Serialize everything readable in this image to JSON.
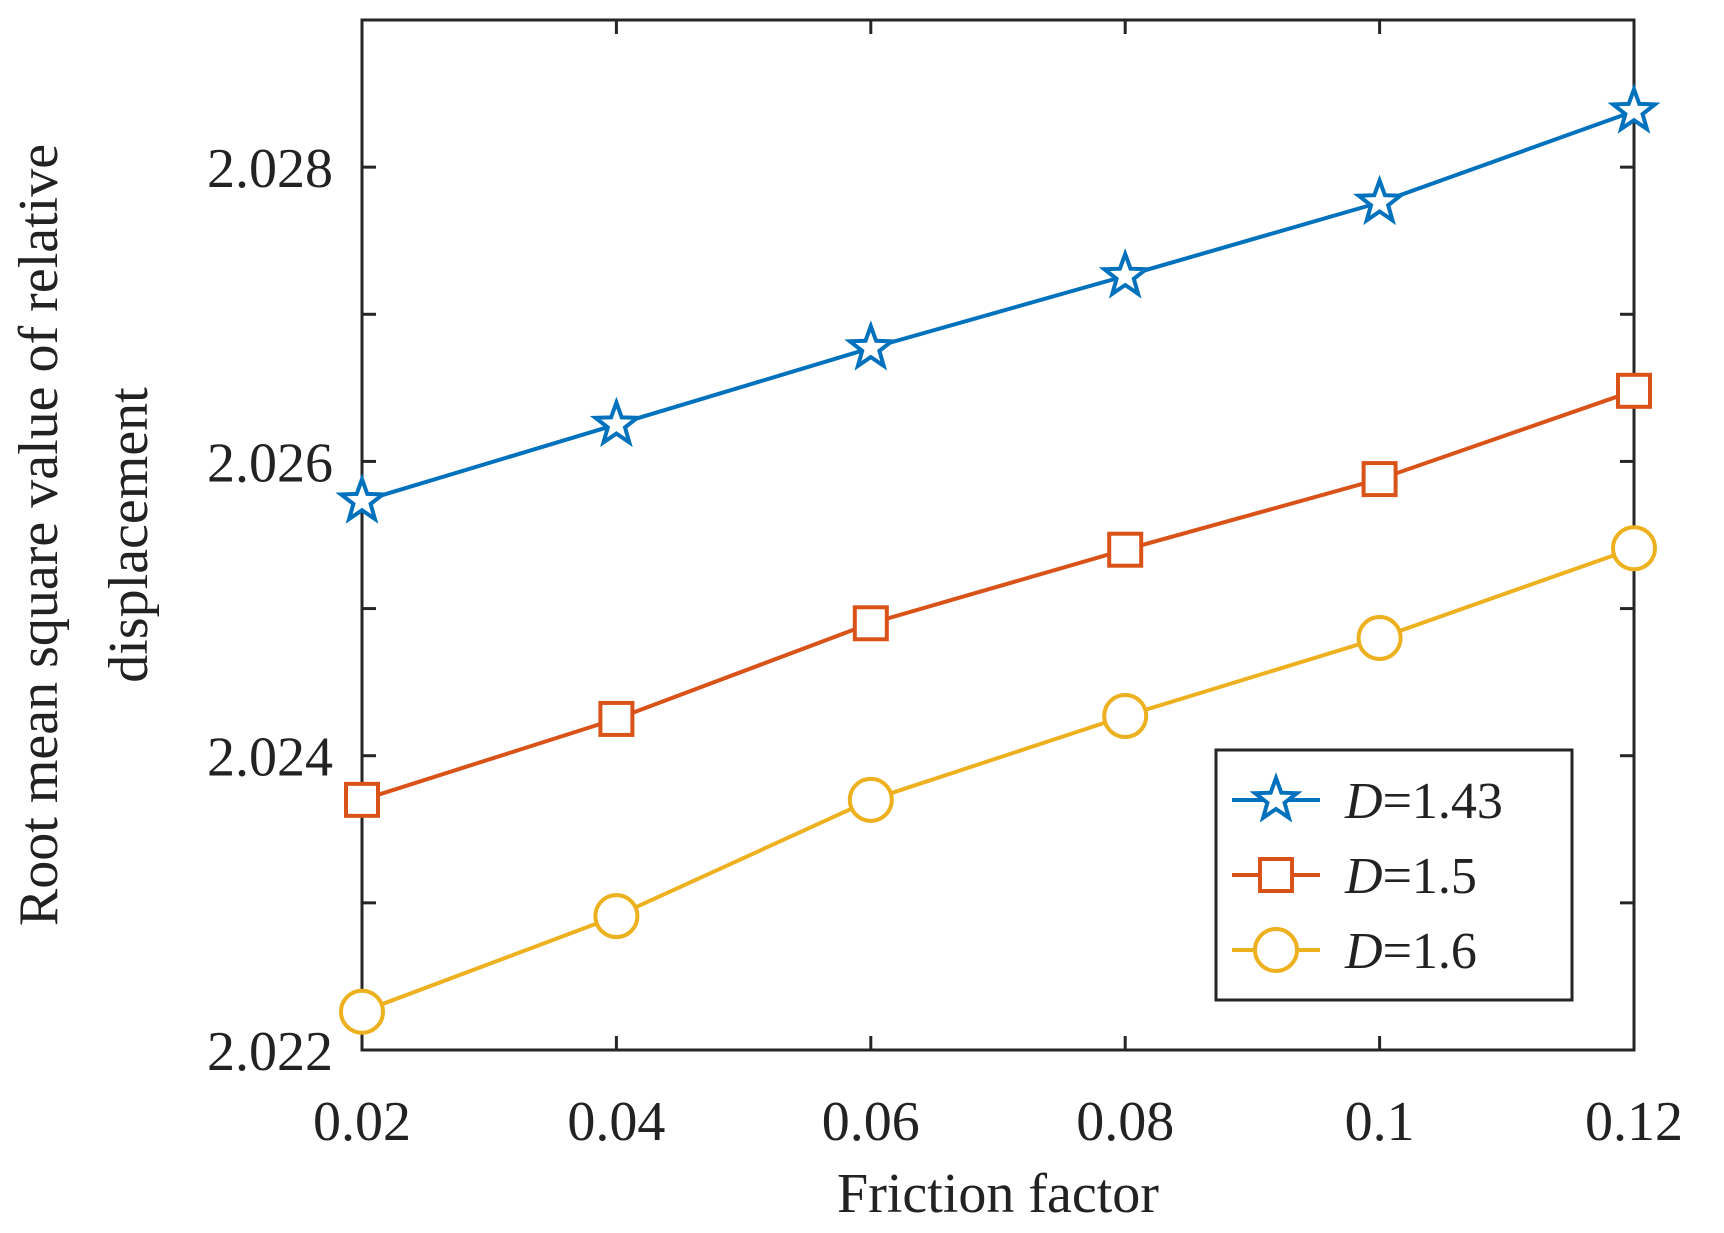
{
  "chart_data": {
    "type": "line",
    "title": "",
    "xlabel": "Friction factor",
    "ylabel_lines": [
      "Root mean square value of relative",
      "displacement"
    ],
    "x": [
      0.02,
      0.04,
      0.06,
      0.08,
      0.1,
      0.12
    ],
    "xlim": [
      0.02,
      0.12
    ],
    "ylim": [
      2.022,
      2.029
    ],
    "xticks": [
      0.02,
      0.04,
      0.06,
      0.08,
      0.1,
      0.12
    ],
    "xtick_labels": [
      "0.02",
      "0.04",
      "0.06",
      "0.08",
      "0.1",
      "0.12"
    ],
    "yticks_labeled": [
      2.022,
      2.024,
      2.026,
      2.028
    ],
    "ytick_labels": [
      "2.022",
      "2.024",
      "2.026",
      "2.028"
    ],
    "yticks_minor": [
      2.023,
      2.025,
      2.027
    ],
    "grid": false,
    "legend_position": "bottom-right",
    "series": [
      {
        "name": "D=1.43",
        "legend_italic": "D",
        "legend_rest": "=1.43",
        "marker": "star",
        "color": "#0072BD",
        "values": [
          2.02573,
          2.02625,
          2.02677,
          2.02726,
          2.02776,
          2.02838
        ]
      },
      {
        "name": "D=1.5",
        "legend_italic": "D",
        "legend_rest": "=1.5",
        "marker": "square",
        "color": "#D95319",
        "values": [
          2.0237,
          2.02425,
          2.0249,
          2.0254,
          2.02588,
          2.02648
        ]
      },
      {
        "name": "D=1.6",
        "legend_italic": "D",
        "legend_rest": "=1.6",
        "marker": "circle",
        "color": "#EDB120",
        "values": [
          2.02226,
          2.02291,
          2.0237,
          2.02427,
          2.0248,
          2.02541
        ]
      }
    ]
  }
}
